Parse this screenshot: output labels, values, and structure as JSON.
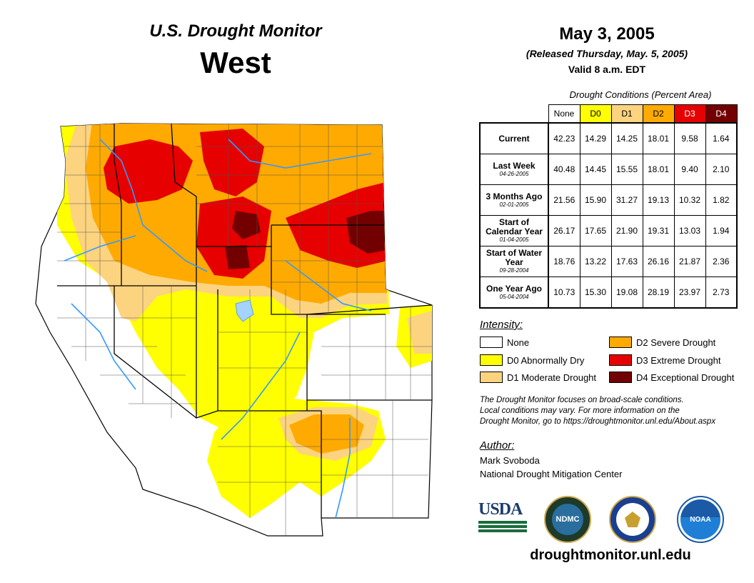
{
  "header": {
    "subtitle": "U.S. Drought Monitor",
    "region": "West",
    "date": "May 3, 2005",
    "released": "(Released Thursday, May. 5, 2005)",
    "valid": "Valid 8 a.m. EDT"
  },
  "table": {
    "caption": "Drought Conditions (Percent Area)",
    "columns": [
      "None",
      "D0",
      "D1",
      "D2",
      "D3",
      "D4"
    ],
    "column_colors": [
      "#ffffff",
      "#ffff00",
      "#fcd37f",
      "#ffaa00",
      "#e60000",
      "#730000"
    ],
    "rows": [
      {
        "label": "Current",
        "date": "",
        "values": [
          "42.23",
          "14.29",
          "14.25",
          "18.01",
          "9.58",
          "1.64"
        ]
      },
      {
        "label": "Last Week",
        "date": "04-26-2005",
        "values": [
          "40.48",
          "14.45",
          "15.55",
          "18.01",
          "9.40",
          "2.10"
        ]
      },
      {
        "label": "3 Months Ago",
        "date": "02-01-2005",
        "values": [
          "21.56",
          "15.90",
          "31.27",
          "19.13",
          "10.32",
          "1.82"
        ]
      },
      {
        "label": "Start of Calendar Year",
        "date": "01-04-2005",
        "values": [
          "26.17",
          "17.65",
          "21.90",
          "19.31",
          "13.03",
          "1.94"
        ]
      },
      {
        "label": "Start of Water Year",
        "date": "09-28-2004",
        "values": [
          "18.76",
          "13.22",
          "17.63",
          "26.16",
          "21.87",
          "2.36"
        ]
      },
      {
        "label": "One Year Ago",
        "date": "05-04-2004",
        "values": [
          "10.73",
          "15.30",
          "19.08",
          "28.19",
          "23.97",
          "2.73"
        ]
      }
    ]
  },
  "legend": {
    "title": "Intensity:",
    "items": [
      {
        "label": "None",
        "color": "#ffffff"
      },
      {
        "label": "D0 Abnormally Dry",
        "color": "#ffff00"
      },
      {
        "label": "D1 Moderate Drought",
        "color": "#fcd37f"
      },
      {
        "label": "D2 Severe Drought",
        "color": "#ffaa00"
      },
      {
        "label": "D3 Extreme Drought",
        "color": "#e60000"
      },
      {
        "label": "D4 Exceptional Drought",
        "color": "#730000"
      }
    ]
  },
  "note": {
    "line1": "The Drought Monitor focuses on broad-scale conditions.",
    "line2": "Local conditions may vary. For more information on the",
    "line3": "Drought Monitor, go to https://droughtmonitor.unl.edu/About.aspx"
  },
  "author": {
    "title": "Author:",
    "name": "Mark Svoboda",
    "org": "National Drought Mitigation Center"
  },
  "logos": {
    "usda": "USDA",
    "ndmc": "NDMC",
    "noaa": "NOAA"
  },
  "website": "droughtmonitor.unl.edu"
}
